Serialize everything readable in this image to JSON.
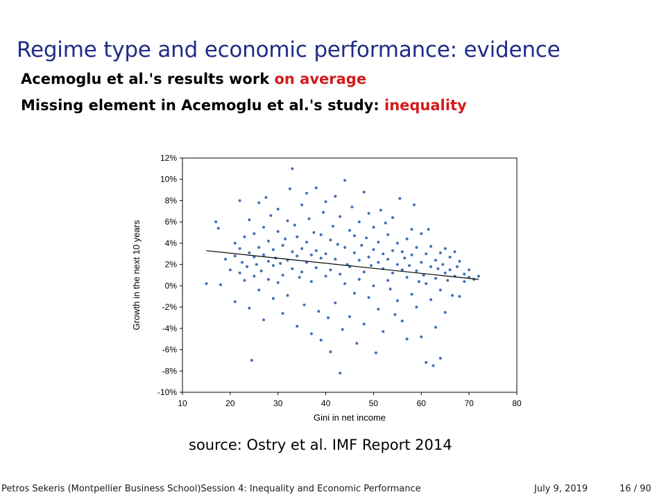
{
  "slide": {
    "title": "Regime type and economic performance: evidence",
    "line1_main": "Acemoglu et al.'s results work ",
    "line1_highlight": "on average",
    "line2_main": "Missing element in Acemoglu et al.'s study: ",
    "line2_highlight": "inequality",
    "source": "source: Ostry et al. IMF Report 2014",
    "highlight_color": "#d41a1a",
    "title_color": "#1f2d86"
  },
  "footer": {
    "author": "Petros Sekeris (Montpellier Business School)Session 4: Inequality and Economic Performance",
    "date": "July 9, 2019",
    "page": "16 / 90"
  },
  "chart_data": {
    "type": "scatter",
    "xlabel": "Gini in net income",
    "ylabel": "Growth in the next 10 years",
    "xlim": [
      10,
      80
    ],
    "ylim": [
      -10,
      12
    ],
    "x_ticks": [
      "10",
      "20",
      "30",
      "40",
      "50",
      "60",
      "70",
      "80"
    ],
    "y_ticks": [
      "12%",
      "10%",
      "8%",
      "6%",
      "4%",
      "2%",
      "0%",
      "-2%",
      "-4%",
      "-6%",
      "-8%",
      "-10%"
    ],
    "marker_color": "#3f6fb5",
    "trend_line": {
      "x": [
        15,
        72
      ],
      "y": [
        3.3,
        0.6
      ]
    },
    "points": [
      [
        15,
        0.2
      ],
      [
        17,
        6.0
      ],
      [
        17.5,
        5.4
      ],
      [
        18,
        0.1
      ],
      [
        19,
        2.5
      ],
      [
        20,
        1.5
      ],
      [
        21,
        2.8
      ],
      [
        21,
        4.0
      ],
      [
        21,
        -1.5
      ],
      [
        22,
        8.0
      ],
      [
        22,
        3.5
      ],
      [
        22,
        1.2
      ],
      [
        22.5,
        2.2
      ],
      [
        23,
        0.5
      ],
      [
        23,
        4.6
      ],
      [
        23.5,
        1.8
      ],
      [
        24,
        3.1
      ],
      [
        24,
        6.2
      ],
      [
        24,
        -2.1
      ],
      [
        24.5,
        -7.0
      ],
      [
        25,
        2.7
      ],
      [
        25,
        4.9
      ],
      [
        25,
        0.9
      ],
      [
        25.5,
        2.0
      ],
      [
        26,
        3.6
      ],
      [
        26,
        7.8
      ],
      [
        26,
        -0.4
      ],
      [
        26.5,
        1.4
      ],
      [
        27,
        2.9
      ],
      [
        27,
        5.5
      ],
      [
        27,
        -3.2
      ],
      [
        27.5,
        8.3
      ],
      [
        28,
        2.3
      ],
      [
        28,
        4.2
      ],
      [
        28,
        0.6
      ],
      [
        28.5,
        6.6
      ],
      [
        29,
        1.9
      ],
      [
        29,
        3.4
      ],
      [
        29,
        -1.2
      ],
      [
        29.5,
        2.6
      ],
      [
        30,
        5.1
      ],
      [
        30,
        0.3
      ],
      [
        30,
        7.2
      ],
      [
        30.5,
        2.1
      ],
      [
        31,
        3.8
      ],
      [
        31,
        -2.6
      ],
      [
        31,
        1.0
      ],
      [
        31.5,
        4.4
      ],
      [
        32,
        2.4
      ],
      [
        32,
        6.1
      ],
      [
        32,
        -0.9
      ],
      [
        32.5,
        9.1
      ],
      [
        33,
        3.2
      ],
      [
        33,
        1.6
      ],
      [
        33,
        11.0
      ],
      [
        33.5,
        5.7
      ],
      [
        34,
        2.8
      ],
      [
        34,
        -3.8
      ],
      [
        34,
        4.6
      ],
      [
        34.5,
        0.8
      ],
      [
        35,
        3.5
      ],
      [
        35,
        7.6
      ],
      [
        35,
        1.3
      ],
      [
        35.5,
        -1.8
      ],
      [
        36,
        4.1
      ],
      [
        36,
        2.2
      ],
      [
        36,
        8.7
      ],
      [
        36.5,
        6.3
      ],
      [
        37,
        2.9
      ],
      [
        37,
        -4.5
      ],
      [
        37,
        0.4
      ],
      [
        37.5,
        5.0
      ],
      [
        38,
        3.3
      ],
      [
        38,
        1.7
      ],
      [
        38,
        9.2
      ],
      [
        38.5,
        -2.4
      ],
      [
        39,
        4.8
      ],
      [
        39,
        2.6
      ],
      [
        39,
        -5.1
      ],
      [
        39.5,
        6.9
      ],
      [
        40,
        3.0
      ],
      [
        40,
        0.9
      ],
      [
        40,
        7.9
      ],
      [
        40.5,
        -3.0
      ],
      [
        41,
        4.3
      ],
      [
        41,
        1.5
      ],
      [
        41,
        -6.2
      ],
      [
        41.5,
        5.6
      ],
      [
        42,
        2.5
      ],
      [
        42,
        8.4
      ],
      [
        42,
        -1.6
      ],
      [
        42.5,
        3.9
      ],
      [
        43,
        -8.2
      ],
      [
        43,
        1.1
      ],
      [
        43,
        6.5
      ],
      [
        43.5,
        -4.1
      ],
      [
        44,
        3.6
      ],
      [
        44,
        9.9
      ],
      [
        44,
        0.2
      ],
      [
        44.5,
        2.0
      ],
      [
        45,
        5.2
      ],
      [
        45,
        -2.9
      ],
      [
        45,
        1.8
      ],
      [
        45.5,
        7.4
      ],
      [
        46,
        3.1
      ],
      [
        46,
        -0.7
      ],
      [
        46,
        4.7
      ],
      [
        46.5,
        -5.4
      ],
      [
        47,
        2.4
      ],
      [
        47,
        6.0
      ],
      [
        47,
        0.6
      ],
      [
        47.5,
        3.8
      ],
      [
        48,
        8.8
      ],
      [
        48,
        1.3
      ],
      [
        48,
        -3.6
      ],
      [
        48.5,
        4.5
      ],
      [
        49,
        2.7
      ],
      [
        49,
        -1.1
      ],
      [
        49,
        6.8
      ],
      [
        49.5,
        1.9
      ],
      [
        50,
        3.4
      ],
      [
        50,
        0.0
      ],
      [
        50,
        5.5
      ],
      [
        50.5,
        -6.3
      ],
      [
        51,
        2.2
      ],
      [
        51,
        4.1
      ],
      [
        51,
        -2.2
      ],
      [
        51.5,
        7.1
      ],
      [
        52,
        1.6
      ],
      [
        52,
        3.0
      ],
      [
        52,
        -4.3
      ],
      [
        52.5,
        5.9
      ],
      [
        53,
        2.5
      ],
      [
        53,
        0.5
      ],
      [
        53,
        4.8
      ],
      [
        53.5,
        -0.3
      ],
      [
        54,
        3.3
      ],
      [
        54,
        1.2
      ],
      [
        54,
        6.4
      ],
      [
        54.5,
        -2.7
      ],
      [
        55,
        2.0
      ],
      [
        55,
        4.0
      ],
      [
        55,
        -1.4
      ],
      [
        55.5,
        8.2
      ],
      [
        56,
        1.5
      ],
      [
        56,
        3.2
      ],
      [
        56,
        -3.3
      ],
      [
        56.5,
        2.6
      ],
      [
        57,
        0.8
      ],
      [
        57,
        4.4
      ],
      [
        57,
        -5.0
      ],
      [
        57.5,
        1.9
      ],
      [
        58,
        2.9
      ],
      [
        58,
        -0.8
      ],
      [
        58,
        5.3
      ],
      [
        58.5,
        7.6
      ],
      [
        59,
        1.4
      ],
      [
        59,
        3.6
      ],
      [
        59,
        -2.0
      ],
      [
        59.5,
        0.4
      ],
      [
        60,
        2.2
      ],
      [
        60,
        -4.8
      ],
      [
        60,
        4.9
      ],
      [
        60.5,
        1.0
      ],
      [
        61,
        3.0
      ],
      [
        61,
        -7.2
      ],
      [
        61,
        0.2
      ],
      [
        61.5,
        5.3
      ],
      [
        62,
        1.8
      ],
      [
        62,
        -1.3
      ],
      [
        62,
        3.7
      ],
      [
        62.5,
        -7.5
      ],
      [
        63,
        2.4
      ],
      [
        63,
        0.7
      ],
      [
        63,
        -3.9
      ],
      [
        63.5,
        1.6
      ],
      [
        64,
        3.1
      ],
      [
        64,
        -0.4
      ],
      [
        64,
        -6.8
      ],
      [
        64.5,
        2.0
      ],
      [
        65,
        1.2
      ],
      [
        65,
        3.5
      ],
      [
        65,
        -2.5
      ],
      [
        65.5,
        0.5
      ],
      [
        66,
        2.7
      ],
      [
        66,
        1.5
      ],
      [
        66.5,
        -0.9
      ],
      [
        67,
        3.2
      ],
      [
        67,
        0.9
      ],
      [
        67.5,
        1.8
      ],
      [
        68,
        2.3
      ],
      [
        68,
        -1.0
      ],
      [
        69,
        1.1
      ],
      [
        69,
        0.4
      ],
      [
        70,
        1.5
      ],
      [
        70,
        0.8
      ],
      [
        71,
        0.6
      ],
      [
        72,
        0.9
      ]
    ]
  }
}
